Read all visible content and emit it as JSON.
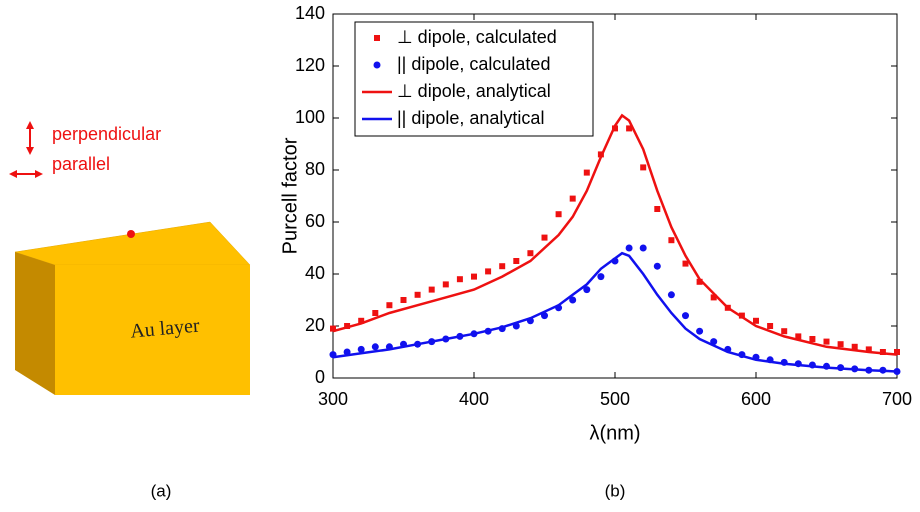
{
  "diagram": {
    "perpendicular_label": "perpendicular",
    "parallel_label": "parallel",
    "block_label": "Au layer",
    "panel_a": "(a)",
    "panel_b": "(b)"
  },
  "chart_data": {
    "type": "line",
    "xlabel": "λ(nm)",
    "ylabel": "Purcell factor",
    "xlim": [
      300,
      700
    ],
    "xticks": [
      300,
      400,
      500,
      600,
      700
    ],
    "ylim": [
      0,
      140
    ],
    "yticks": [
      0,
      20,
      40,
      60,
      80,
      100,
      120,
      140
    ],
    "grid": false,
    "legend": "upper left",
    "series": [
      {
        "name": "⊥ dipole, calculated",
        "color": "#ee1111",
        "mode": "markers",
        "marker": "square",
        "x": [
          300,
          310,
          320,
          330,
          340,
          350,
          360,
          370,
          380,
          390,
          400,
          410,
          420,
          430,
          440,
          450,
          460,
          470,
          480,
          490,
          500,
          510,
          520,
          530,
          540,
          550,
          560,
          570,
          580,
          590,
          600,
          610,
          620,
          630,
          640,
          650,
          660,
          670,
          680,
          690,
          700
        ],
        "values": [
          19,
          20,
          22,
          25,
          28,
          30,
          32,
          34,
          36,
          38,
          39,
          41,
          43,
          45,
          48,
          54,
          63,
          69,
          79,
          86,
          96,
          96,
          81,
          65,
          53,
          44,
          37,
          31,
          27,
          24,
          22,
          20,
          18,
          16,
          15,
          14,
          13,
          12,
          11,
          10,
          10
        ]
      },
      {
        "name": "|| dipole, calculated",
        "color": "#1111ee",
        "mode": "markers",
        "marker": "circle",
        "x": [
          300,
          310,
          320,
          330,
          340,
          350,
          360,
          370,
          380,
          390,
          400,
          410,
          420,
          430,
          440,
          450,
          460,
          470,
          480,
          490,
          500,
          510,
          520,
          530,
          540,
          550,
          560,
          570,
          580,
          590,
          600,
          610,
          620,
          630,
          640,
          650,
          660,
          670,
          680,
          690,
          700
        ],
        "values": [
          9,
          10,
          11,
          12,
          12,
          13,
          13,
          14,
          15,
          16,
          17,
          18,
          19,
          20,
          22,
          24,
          27,
          30,
          34,
          39,
          45,
          50,
          50,
          43,
          32,
          24,
          18,
          14,
          11,
          9,
          8,
          7,
          6,
          5.5,
          5,
          4.5,
          4,
          3.5,
          3,
          3,
          2.5
        ]
      },
      {
        "name": "⊥ dipole, analytical",
        "color": "#ee1111",
        "mode": "line",
        "x": [
          300,
          320,
          340,
          360,
          380,
          400,
          420,
          440,
          460,
          470,
          480,
          490,
          500,
          505,
          510,
          520,
          530,
          540,
          550,
          560,
          580,
          600,
          620,
          650,
          680,
          700
        ],
        "values": [
          18,
          21,
          25,
          28,
          31,
          34,
          39,
          45,
          55,
          62,
          72,
          85,
          97,
          101,
          99,
          88,
          72,
          58,
          47,
          38,
          27,
          20,
          16,
          12,
          10,
          9
        ]
      },
      {
        "name": "|| dipole, analytical",
        "color": "#1111ee",
        "mode": "line",
        "x": [
          300,
          320,
          340,
          360,
          380,
          400,
          420,
          440,
          460,
          470,
          480,
          490,
          500,
          505,
          510,
          520,
          530,
          540,
          550,
          560,
          580,
          600,
          620,
          650,
          680,
          700
        ],
        "values": [
          8,
          9.5,
          11,
          13,
          15,
          17,
          19.5,
          23,
          28,
          32,
          36,
          42,
          46,
          48,
          47,
          40,
          32,
          25,
          19,
          15,
          10,
          7,
          5.5,
          4,
          3,
          2.5
        ]
      }
    ]
  }
}
